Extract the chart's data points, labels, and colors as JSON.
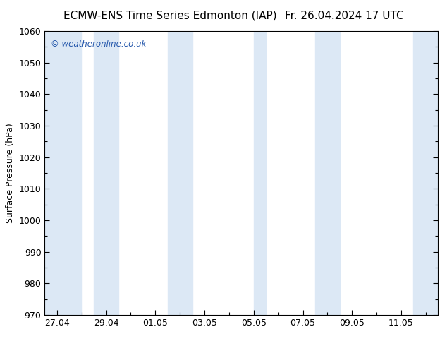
{
  "title_left": "ECMW-ENS Time Series Edmonton (IAP)",
  "title_right": "Fr. 26.04.2024 17 UTC",
  "ylabel": "Surface Pressure (hPa)",
  "ylim": [
    970,
    1060
  ],
  "ytick_major": 10,
  "background_color": "#ffffff",
  "plot_bg_color": "#ffffff",
  "band_color": "#dce8f5",
  "watermark": "© weatheronline.co.uk",
  "watermark_color": "#2255aa",
  "x_tick_labels": [
    "27.04",
    "29.04",
    "01.05",
    "03.05",
    "05.05",
    "07.05",
    "09.05",
    "11.05"
  ],
  "x_tick_days": [
    0,
    2,
    4,
    6,
    8,
    10,
    12,
    14
  ],
  "xlim_days": [
    -0.5,
    15.5
  ],
  "shaded_bands_days": [
    [
      -0.5,
      1.0
    ],
    [
      1.5,
      2.5
    ],
    [
      4.5,
      5.5
    ],
    [
      8.0,
      8.5
    ],
    [
      10.5,
      11.5
    ],
    [
      14.5,
      15.5
    ]
  ],
  "title_fontsize": 11,
  "tick_label_fontsize": 9,
  "ylabel_fontsize": 9
}
